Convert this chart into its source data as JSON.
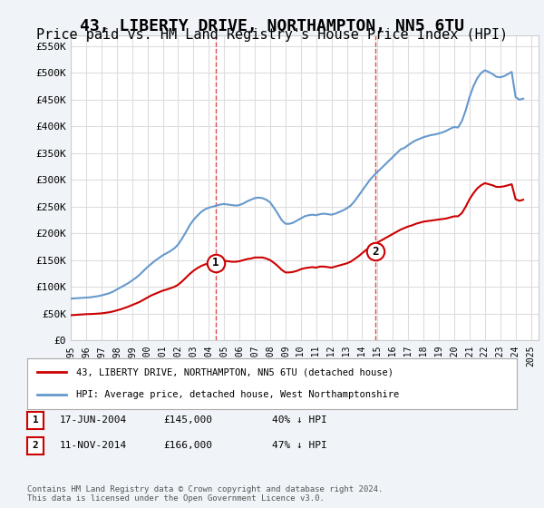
{
  "title": "43, LIBERTY DRIVE, NORTHAMPTON, NN5 6TU",
  "subtitle": "Price paid vs. HM Land Registry's House Price Index (HPI)",
  "title_fontsize": 13,
  "subtitle_fontsize": 11,
  "ylabel_ticks": [
    "£0",
    "£50K",
    "£100K",
    "£150K",
    "£200K",
    "£250K",
    "£300K",
    "£350K",
    "£400K",
    "£450K",
    "£500K",
    "£550K"
  ],
  "ytick_values": [
    0,
    50000,
    100000,
    150000,
    200000,
    250000,
    300000,
    350000,
    400000,
    450000,
    500000,
    550000
  ],
  "ylim": [
    0,
    570000
  ],
  "xlim_start": 1995.0,
  "xlim_end": 2025.5,
  "xtick_years": [
    1995,
    1996,
    1997,
    1998,
    1999,
    2000,
    2001,
    2002,
    2003,
    2004,
    2005,
    2006,
    2007,
    2008,
    2009,
    2010,
    2011,
    2012,
    2013,
    2014,
    2015,
    2016,
    2017,
    2018,
    2019,
    2020,
    2021,
    2022,
    2023,
    2024,
    2025
  ],
  "red_line_color": "#cc0000",
  "blue_line_color": "#6699cc",
  "grid_color": "#dddddd",
  "bg_color": "#f0f4f8",
  "plot_bg_color": "#ffffff",
  "sale1_x": 2004.46,
  "sale1_y": 145000,
  "sale1_label": "1",
  "sale2_x": 2014.86,
  "sale2_y": 166000,
  "sale2_label": "2",
  "legend_line1": "43, LIBERTY DRIVE, NORTHAMPTON, NN5 6TU (detached house)",
  "legend_line2": "HPI: Average price, detached house, West Northamptonshire",
  "annot1_date": "17-JUN-2004",
  "annot1_price": "£145,000",
  "annot1_hpi": "40% ↓ HPI",
  "annot2_date": "11-NOV-2014",
  "annot2_price": "£166,000",
  "annot2_hpi": "47% ↓ HPI",
  "footer": "Contains HM Land Registry data © Crown copyright and database right 2024.\nThis data is licensed under the Open Government Licence v3.0.",
  "hpi_data_x": [
    1995.0,
    1995.25,
    1995.5,
    1995.75,
    1996.0,
    1996.25,
    1996.5,
    1996.75,
    1997.0,
    1997.25,
    1997.5,
    1997.75,
    1998.0,
    1998.25,
    1998.5,
    1998.75,
    1999.0,
    1999.25,
    1999.5,
    1999.75,
    2000.0,
    2000.25,
    2000.5,
    2000.75,
    2001.0,
    2001.25,
    2001.5,
    2001.75,
    2002.0,
    2002.25,
    2002.5,
    2002.75,
    2003.0,
    2003.25,
    2003.5,
    2003.75,
    2004.0,
    2004.25,
    2004.5,
    2004.75,
    2005.0,
    2005.25,
    2005.5,
    2005.75,
    2006.0,
    2006.25,
    2006.5,
    2006.75,
    2007.0,
    2007.25,
    2007.5,
    2007.75,
    2008.0,
    2008.25,
    2008.5,
    2008.75,
    2009.0,
    2009.25,
    2009.5,
    2009.75,
    2010.0,
    2010.25,
    2010.5,
    2010.75,
    2011.0,
    2011.25,
    2011.5,
    2011.75,
    2012.0,
    2012.25,
    2012.5,
    2012.75,
    2013.0,
    2013.25,
    2013.5,
    2013.75,
    2014.0,
    2014.25,
    2014.5,
    2014.75,
    2015.0,
    2015.25,
    2015.5,
    2015.75,
    2016.0,
    2016.25,
    2016.5,
    2016.75,
    2017.0,
    2017.25,
    2017.5,
    2017.75,
    2018.0,
    2018.25,
    2018.5,
    2018.75,
    2019.0,
    2019.25,
    2019.5,
    2019.75,
    2020.0,
    2020.25,
    2020.5,
    2020.75,
    2021.0,
    2021.25,
    2021.5,
    2021.75,
    2022.0,
    2022.25,
    2022.5,
    2022.75,
    2023.0,
    2023.25,
    2023.5,
    2023.75,
    2024.0,
    2024.25,
    2024.5
  ],
  "hpi_data_y": [
    78000,
    78500,
    79000,
    79500,
    80000,
    80500,
    81500,
    82500,
    84000,
    86000,
    88000,
    91000,
    95000,
    99000,
    103000,
    107000,
    112000,
    117000,
    123000,
    130000,
    137000,
    143000,
    149000,
    154000,
    159000,
    163000,
    167000,
    172000,
    179000,
    190000,
    202000,
    215000,
    225000,
    233000,
    240000,
    245000,
    248000,
    250000,
    252000,
    254000,
    255000,
    254000,
    253000,
    252000,
    253000,
    256000,
    260000,
    263000,
    266000,
    267000,
    266000,
    263000,
    258000,
    248000,
    237000,
    225000,
    218000,
    218000,
    220000,
    224000,
    228000,
    232000,
    234000,
    235000,
    234000,
    236000,
    237000,
    236000,
    235000,
    237000,
    240000,
    243000,
    247000,
    252000,
    260000,
    270000,
    280000,
    290000,
    300000,
    308000,
    315000,
    322000,
    329000,
    336000,
    343000,
    350000,
    357000,
    360000,
    365000,
    370000,
    374000,
    377000,
    380000,
    382000,
    384000,
    385000,
    387000,
    389000,
    392000,
    396000,
    399000,
    398000,
    410000,
    430000,
    455000,
    475000,
    490000,
    500000,
    505000,
    502000,
    498000,
    493000,
    492000,
    494000,
    498000,
    502000,
    455000,
    450000,
    452000
  ],
  "red_data_x": [
    1995.0,
    1995.25,
    1995.5,
    1995.75,
    1996.0,
    1996.25,
    1996.5,
    1996.75,
    1997.0,
    1997.25,
    1997.5,
    1997.75,
    1998.0,
    1998.25,
    1998.5,
    1998.75,
    1999.0,
    1999.25,
    1999.5,
    1999.75,
    2000.0,
    2000.25,
    2000.5,
    2000.75,
    2001.0,
    2001.25,
    2001.5,
    2001.75,
    2002.0,
    2002.25,
    2002.5,
    2002.75,
    2003.0,
    2003.25,
    2003.5,
    2003.75,
    2004.0,
    2004.25,
    2004.5,
    2004.75,
    2005.0,
    2005.25,
    2005.5,
    2005.75,
    2006.0,
    2006.25,
    2006.5,
    2006.75,
    2007.0,
    2007.25,
    2007.5,
    2007.75,
    2008.0,
    2008.25,
    2008.5,
    2008.75,
    2009.0,
    2009.25,
    2009.5,
    2009.75,
    2010.0,
    2010.25,
    2010.5,
    2010.75,
    2011.0,
    2011.25,
    2011.5,
    2011.75,
    2012.0,
    2012.25,
    2012.5,
    2012.75,
    2013.0,
    2013.25,
    2013.5,
    2013.75,
    2014.0,
    2014.25,
    2014.5,
    2014.75,
    2015.0,
    2015.25,
    2015.5,
    2015.75,
    2016.0,
    2016.25,
    2016.5,
    2016.75,
    2017.0,
    2017.25,
    2017.5,
    2017.75,
    2018.0,
    2018.25,
    2018.5,
    2018.75,
    2019.0,
    2019.25,
    2019.5,
    2019.75,
    2020.0,
    2020.25,
    2020.5,
    2020.75,
    2021.0,
    2021.25,
    2021.5,
    2021.75,
    2022.0,
    2022.25,
    2022.5,
    2022.75,
    2023.0,
    2023.25,
    2023.5,
    2023.75,
    2024.0,
    2024.25,
    2024.5
  ],
  "red_data_y": [
    47000,
    47500,
    48000,
    48500,
    49000,
    49200,
    49500,
    50000,
    50500,
    51500,
    52500,
    54000,
    56000,
    58000,
    60500,
    63000,
    66000,
    69000,
    72000,
    76000,
    80000,
    84000,
    87000,
    90000,
    93000,
    95000,
    97500,
    100000,
    104000,
    110000,
    117000,
    124000,
    130000,
    135000,
    139000,
    142000,
    144000,
    145000,
    146000,
    148000,
    149000,
    148000,
    147000,
    147000,
    148000,
    150000,
    152000,
    153000,
    155000,
    155000,
    155000,
    153000,
    150000,
    145000,
    139000,
    132000,
    127000,
    127000,
    128000,
    130000,
    133000,
    135000,
    136000,
    137000,
    136000,
    138000,
    138000,
    137000,
    136000,
    138000,
    140000,
    142000,
    144000,
    147000,
    152000,
    157000,
    163000,
    169000,
    174000,
    179000,
    183000,
    187000,
    191000,
    195000,
    199000,
    203000,
    207000,
    210000,
    213000,
    215000,
    218000,
    220000,
    222000,
    223000,
    224000,
    225000,
    226000,
    227000,
    228000,
    230000,
    232000,
    232000,
    238000,
    250000,
    264000,
    275000,
    284000,
    290000,
    294000,
    292000,
    290000,
    287000,
    287000,
    288000,
    290000,
    292000,
    264000,
    261000,
    263000
  ]
}
